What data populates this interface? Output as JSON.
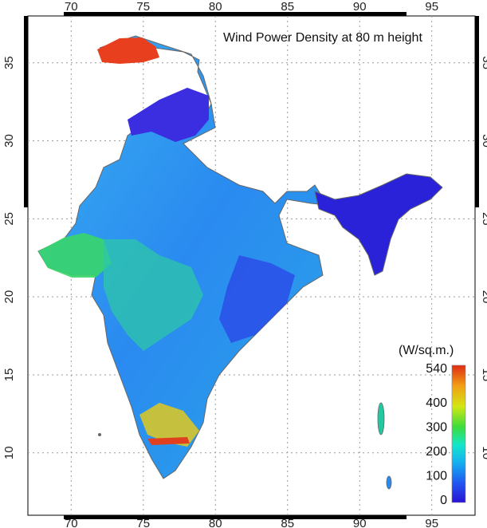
{
  "title": "Wind Power Density at 80 m height",
  "lon_ticks": [
    "70",
    "75",
    "80",
    "85",
    "90",
    "95"
  ],
  "lat_ticks": [
    "35",
    "30",
    "25",
    "20",
    "15",
    "10"
  ],
  "lon_range": [
    67,
    98
  ],
  "lat_range": [
    6,
    38
  ],
  "colorbar": {
    "unit": "(W/sq.m.)",
    "labels": [
      "540",
      "400",
      "300",
      "200",
      "100",
      "0"
    ],
    "values": [
      540,
      400,
      300,
      200,
      100,
      0
    ],
    "colors": [
      "#2a12d6",
      "#1f5cf0",
      "#14b4f0",
      "#14e6c8",
      "#3cdc3c",
      "#d2e614",
      "#f0a014",
      "#e02a14"
    ]
  },
  "grid": "dotted",
  "colors": {
    "frame": "#000000",
    "grid": "#9a9a9a",
    "background": "#ffffff"
  }
}
